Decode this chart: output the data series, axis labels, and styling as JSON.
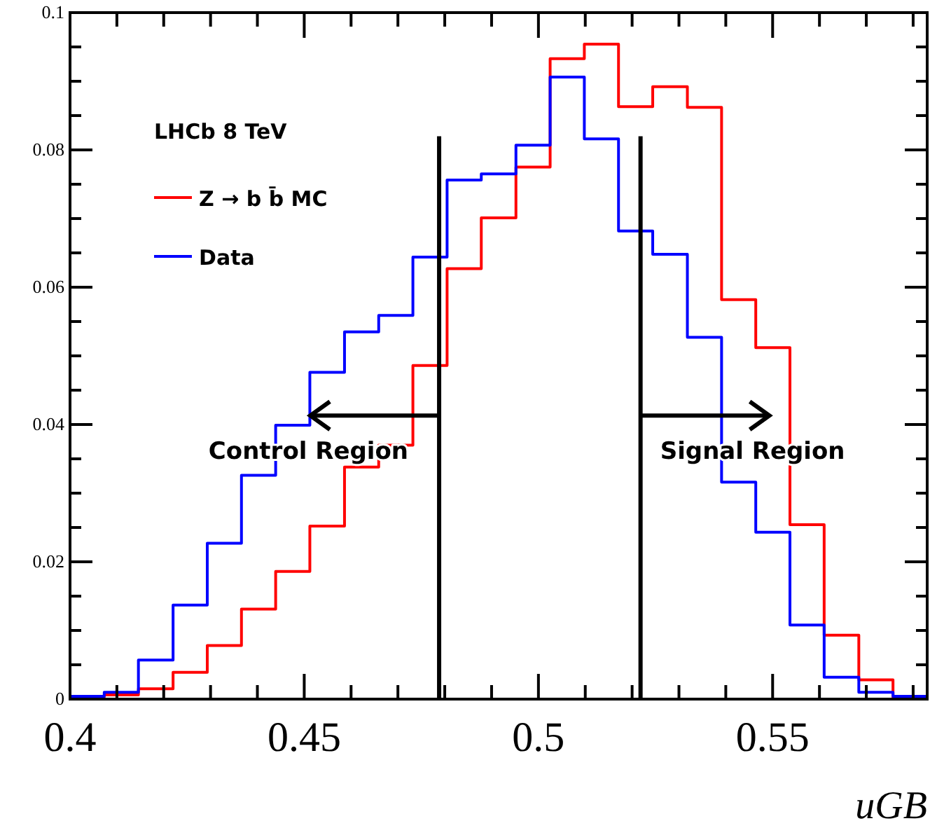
{
  "chart_data": {
    "type": "histogram",
    "xlabel": "uGB",
    "legend_title": "LHCb 8 TeV",
    "legend": "top left",
    "bins": [
      0.4,
      0.4073,
      0.4146,
      0.422,
      0.4293,
      0.4366,
      0.4439,
      0.4512,
      0.4586,
      0.4659,
      0.4732,
      0.4805,
      0.4878,
      0.4952,
      0.5025,
      0.5098,
      0.5171,
      0.5244,
      0.5318,
      0.5391,
      0.5464,
      0.5537,
      0.561,
      0.5684,
      0.5757,
      0.583
    ],
    "series": [
      {
        "name": "Z → b b̄ MC",
        "color": "#ff0000",
        "values": [
          0.0003,
          0.0006,
          0.0015,
          0.0039,
          0.0078,
          0.0131,
          0.0186,
          0.0252,
          0.0338,
          0.037,
          0.0486,
          0.0627,
          0.0701,
          0.0775,
          0.0933,
          0.0954,
          0.0863,
          0.0892,
          0.0862,
          0.0582,
          0.0512,
          0.0254,
          0.0093,
          0.0028,
          0.0001
        ]
      },
      {
        "name": "Data",
        "color": "#0000ff",
        "values": [
          0.0004,
          0.001,
          0.0057,
          0.0137,
          0.0227,
          0.0326,
          0.0399,
          0.0476,
          0.0535,
          0.0559,
          0.0644,
          0.0756,
          0.0765,
          0.0807,
          0.0906,
          0.0816,
          0.0682,
          0.0648,
          0.0527,
          0.0316,
          0.0243,
          0.0108,
          0.0032,
          0.001,
          0.0004
        ]
      }
    ],
    "xlim": [
      0.4,
      0.583
    ],
    "ylim": [
      0,
      0.1
    ],
    "xticks": [
      0.4,
      {
        "value": 0.41,
        "label": null
      },
      {
        "value": 0.42,
        "label": null
      },
      {
        "value": 0.43,
        "label": null
      },
      {
        "value": 0.44,
        "label": null
      },
      0.45,
      {
        "value": 0.46,
        "label": null
      },
      {
        "value": 0.47,
        "label": null
      },
      {
        "value": 0.48,
        "label": null
      },
      {
        "value": 0.49,
        "label": null
      },
      0.5,
      {
        "value": 0.51,
        "label": null
      },
      {
        "value": 0.52,
        "label": null
      },
      {
        "value": 0.53,
        "label": null
      },
      {
        "value": 0.54,
        "label": null
      },
      0.55,
      {
        "value": 0.56,
        "label": null
      },
      {
        "value": 0.57,
        "label": null
      },
      {
        "value": 0.58,
        "label": null
      }
    ],
    "yticks": [
      0,
      {
        "value": 0.005,
        "label": null
      },
      {
        "value": 0.01,
        "label": null
      },
      {
        "value": 0.015,
        "label": null
      },
      0.02,
      {
        "value": 0.025,
        "label": null
      },
      {
        "value": 0.03,
        "label": null
      },
      {
        "value": 0.035,
        "label": null
      },
      0.04,
      {
        "value": 0.045,
        "label": null
      },
      {
        "value": 0.05,
        "label": null
      },
      {
        "value": 0.055,
        "label": null
      },
      0.06,
      {
        "value": 0.065,
        "label": null
      },
      {
        "value": 0.07,
        "label": null
      },
      {
        "value": 0.075,
        "label": null
      },
      0.08,
      {
        "value": 0.085,
        "label": null
      },
      {
        "value": 0.09,
        "label": null
      },
      {
        "value": 0.095,
        "label": null
      },
      0.1
    ],
    "ref_lines": [
      {
        "axis": "x",
        "value": 0.4788,
        "label": "Control Region",
        "color": "#000000"
      },
      {
        "axis": "x",
        "value": 0.5218,
        "label": "Signal Region",
        "color": "#000000"
      }
    ]
  }
}
